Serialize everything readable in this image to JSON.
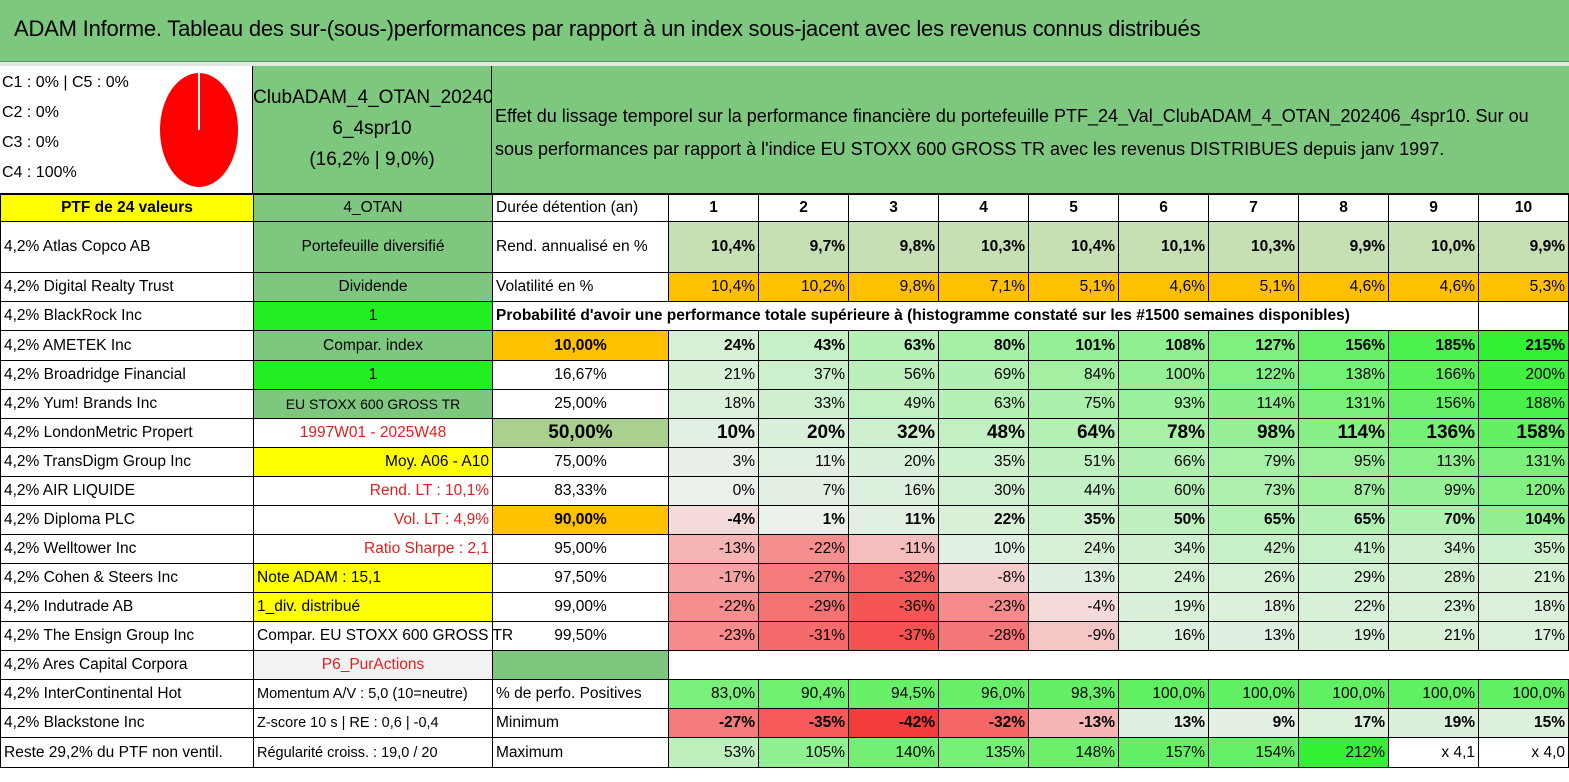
{
  "title": "ADAM Informe. Tableau des sur-(sous-)performances par rapport à un index sous-jacent avec les revenus connus distribués",
  "summary": {
    "c1c5": "C1 : 0% | C5 : 0%",
    "c2": "C2 : 0%",
    "c3": "C3 : 0%",
    "c4": "C4 : 100%",
    "pie_color": "#ff0000"
  },
  "portfolio_name": {
    "line1": "ClubADAM_4_OTAN_20240",
    "line2": "6_4spr10",
    "line3": "(16,2% | 9,0%)"
  },
  "description": "Effet du lissage temporel sur la performance financière du portefeuille PTF_24_Val_ClubADAM_4_OTAN_202406_4spr10. Sur ou sous performances par rapport à l'indice EU STOXX 600 GROSS TR avec les revenus DISTRIBUES depuis janv 1997.",
  "holdings": [
    "PTF de 24 valeurs",
    "4,2% Atlas Copco AB",
    "4,2% Digital Realty Trust",
    "4,2% BlackRock Inc",
    "4,2% AMETEK Inc",
    "4,2% Broadridge Financial",
    "4,2% Yum! Brands Inc",
    "4,2% LondonMetric Propert",
    "4,2% TransDigm Group Inc",
    "4,2% AIR LIQUIDE",
    "4,2% Diploma PLC",
    "4,2% Welltower Inc",
    "4,2% Cohen & Steers Inc",
    "4,2% Indutrade AB",
    "4,2% The Ensign Group Inc",
    "4,2% Ares Capital Corpora",
    "4,2% InterContinental Hot",
    "4,2% Blackstone Inc",
    "Reste 29,2% du PTF non ventil."
  ],
  "info": [
    "4_OTAN",
    "Portefeuille diversifié",
    "Dividende",
    "1",
    "Compar. index",
    "1",
    "EU STOXX 600 GROSS TR",
    "1997W01 - 2025W48",
    "Moy. A06 - A10",
    "Rend. LT : 10,1%",
    "Vol. LT : 4,9%",
    "Ratio Sharpe : 2,1",
    "Note ADAM : 15,1",
    "1_div. distribué",
    "Compar. EU STOXX 600 GROSS TR",
    "P6_PurActions",
    "Momentum A/V : 5,0 (10=neutre)",
    "Z-score 10 s | RE : 0,6 | -0,4",
    "Régularité croiss. : 19,0 / 20"
  ],
  "labels": {
    "duration": "Durée détention (an)",
    "return": "Rend. annualisé en %",
    "volatility": "Volatilité en %",
    "probability": "Probabilité d'avoir une performance totale supérieure à (histogramme constaté sur les #1500 semaines disponibles)",
    "positive": "% de perfo. Positives",
    "minimum": "Minimum",
    "maximum": "Maximum"
  },
  "years": [
    "1",
    "2",
    "3",
    "4",
    "5",
    "6",
    "7",
    "8",
    "9",
    "10"
  ],
  "returns": [
    "10,4%",
    "9,7%",
    "9,8%",
    "10,3%",
    "10,4%",
    "10,1%",
    "10,3%",
    "9,9%",
    "10,0%",
    "9,9%"
  ],
  "volatility": [
    "10,4%",
    "10,2%",
    "9,8%",
    "7,1%",
    "5,1%",
    "4,6%",
    "5,1%",
    "4,6%",
    "4,6%",
    "5,3%"
  ],
  "probability_rows": [
    {
      "pct": "10,00%",
      "values": [
        "24%",
        "43%",
        "63%",
        "80%",
        "101%",
        "108%",
        "127%",
        "156%",
        "185%",
        "215%"
      ]
    },
    {
      "pct": "16,67%",
      "values": [
        "21%",
        "37%",
        "56%",
        "69%",
        "84%",
        "100%",
        "122%",
        "138%",
        "166%",
        "200%"
      ]
    },
    {
      "pct": "25,00%",
      "values": [
        "18%",
        "33%",
        "49%",
        "63%",
        "75%",
        "93%",
        "114%",
        "131%",
        "156%",
        "188%"
      ]
    },
    {
      "pct": "50,00%",
      "values": [
        "10%",
        "20%",
        "32%",
        "48%",
        "64%",
        "78%",
        "98%",
        "114%",
        "136%",
        "158%"
      ]
    },
    {
      "pct": "75,00%",
      "values": [
        "3%",
        "11%",
        "20%",
        "35%",
        "51%",
        "66%",
        "79%",
        "95%",
        "113%",
        "131%"
      ]
    },
    {
      "pct": "83,33%",
      "values": [
        "0%",
        "7%",
        "16%",
        "30%",
        "44%",
        "60%",
        "73%",
        "87%",
        "99%",
        "120%"
      ]
    },
    {
      "pct": "90,00%",
      "values": [
        "-4%",
        "1%",
        "11%",
        "22%",
        "35%",
        "50%",
        "65%",
        "65%",
        "70%",
        "104%"
      ]
    },
    {
      "pct": "95,00%",
      "values": [
        "-13%",
        "-22%",
        "-11%",
        "10%",
        "24%",
        "34%",
        "42%",
        "41%",
        "34%",
        "35%"
      ]
    },
    {
      "pct": "97,50%",
      "values": [
        "-17%",
        "-27%",
        "-32%",
        "-8%",
        "13%",
        "24%",
        "26%",
        "29%",
        "28%",
        "21%"
      ]
    },
    {
      "pct": "99,00%",
      "values": [
        "-22%",
        "-29%",
        "-36%",
        "-23%",
        "-4%",
        "19%",
        "18%",
        "22%",
        "23%",
        "18%"
      ]
    },
    {
      "pct": "99,50%",
      "values": [
        "-23%",
        "-31%",
        "-37%",
        "-28%",
        "-9%",
        "16%",
        "13%",
        "19%",
        "21%",
        "17%"
      ]
    }
  ],
  "positive": [
    "83,0%",
    "90,4%",
    "94,5%",
    "96,0%",
    "98,3%",
    "100,0%",
    "100,0%",
    "100,0%",
    "100,0%",
    "100,0%"
  ],
  "minimum": [
    "-27%",
    "-35%",
    "-42%",
    "-32%",
    "-13%",
    "13%",
    "9%",
    "17%",
    "19%",
    "15%"
  ],
  "maximum": [
    "53%",
    "105%",
    "140%",
    "135%",
    "148%",
    "157%",
    "154%",
    "212%",
    "x 4,1",
    "x 4,0"
  ],
  "colors": {
    "title_green": "#7ec77e",
    "highlight_yellow": "#ffff00",
    "bright_green": "#22ee22",
    "orange": "#ffc000",
    "negative_red": "#f04040",
    "positive_green": "#33dd33"
  }
}
